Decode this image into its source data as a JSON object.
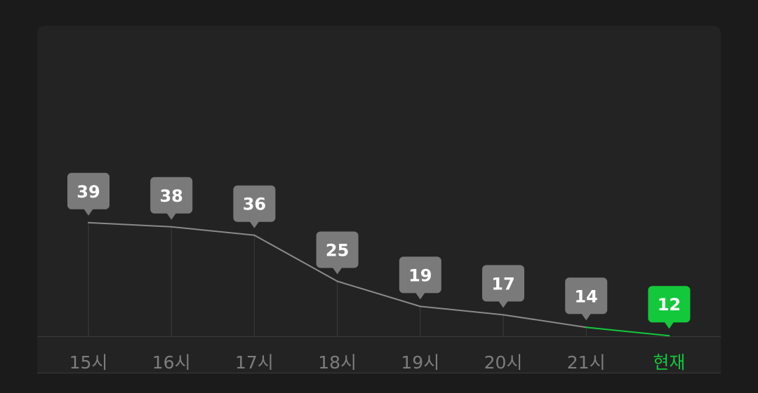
{
  "chart_data": {
    "type": "line",
    "categories": [
      "15시",
      "16시",
      "17시",
      "18시",
      "19시",
      "20시",
      "21시",
      "현재"
    ],
    "values": [
      39,
      38,
      36,
      25,
      19,
      17,
      14,
      12
    ],
    "ylim": [
      0,
      45
    ],
    "current_index": 7,
    "grid": "vertical-lines"
  },
  "colors": {
    "background": "#1b1b1b",
    "card": "#232323",
    "line": "#8a8a8a",
    "badge": "#7a7a7a",
    "accent": "#14c83c",
    "tick": "#7d7d7d",
    "gridline": "#3c3c3c"
  }
}
